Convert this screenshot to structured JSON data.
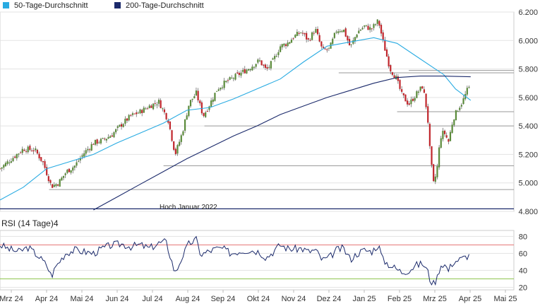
{
  "legend": {
    "ma50_label": "50-Tage-Durchschnitt",
    "ma200_label": "200-Tage-Durchschnitt"
  },
  "rsi_title": "RSI (14 Tage)4",
  "annotation": "Hoch Januar 2022",
  "colors": {
    "ma50": "#29abe2",
    "ma200": "#1b2a6b",
    "up": "#5a8a3a",
    "down": "#c0262c",
    "wick": "#555555",
    "rsi_line": "#1b2a6b",
    "rsi_upper": "#e57373",
    "rsi_lower": "#8bc34a",
    "grid": "#e3e3e3",
    "support": "#9a9a9a",
    "axis": "#bbbbbb"
  },
  "chart_data": [
    {
      "type": "candlestick",
      "title": "",
      "x_tick_labels": [
        "Mrz 24",
        "Apr 24",
        "Mai 24",
        "Jun 24",
        "Jul 24",
        "Aug 24",
        "Sep 24",
        "Okt 24",
        "Nov 24",
        "Dez 24",
        "Jan 25",
        "Feb 25",
        "Mrz 25",
        "Apr 25",
        "Mai 25"
      ],
      "y_ticks": [
        4800,
        5000,
        5200,
        5400,
        5600,
        5800,
        6000,
        6200
      ],
      "y_tick_labels": [
        "4.800",
        "5.000",
        "5.200",
        "5.400",
        "5.600",
        "5.800",
        "6.000",
        "6.200"
      ],
      "ylim": [
        4800,
        6200
      ],
      "x_range_days": [
        0,
        440
      ],
      "grid": true,
      "legend_position": "top-left",
      "horizontal_levels": [
        {
          "value": 4818,
          "label": "Hoch Januar 2022",
          "from_day": 0,
          "to_day": 440
        },
        {
          "value": 4953,
          "from_day": 42,
          "to_day": 440
        },
        {
          "value": 5120,
          "from_day": 140,
          "to_day": 440
        },
        {
          "value": 5400,
          "from_day": 175,
          "to_day": 440
        },
        {
          "value": 5500,
          "from_day": 340,
          "to_day": 440
        },
        {
          "value": 5773,
          "from_day": 290,
          "to_day": 440
        },
        {
          "value": 5790,
          "from_day": 350,
          "to_day": 440
        }
      ],
      "close_path": [
        [
          0,
          5100
        ],
        [
          10,
          5170
        ],
        [
          20,
          5240
        ],
        [
          30,
          5230
        ],
        [
          37,
          5140
        ],
        [
          44,
          4975
        ],
        [
          50,
          5000
        ],
        [
          57,
          5080
        ],
        [
          64,
          5120
        ],
        [
          72,
          5210
        ],
        [
          80,
          5280
        ],
        [
          88,
          5300
        ],
        [
          96,
          5340
        ],
        [
          104,
          5410
        ],
        [
          112,
          5470
        ],
        [
          120,
          5500
        ],
        [
          128,
          5540
        ],
        [
          136,
          5570
        ],
        [
          144,
          5440
        ],
        [
          150,
          5200
        ],
        [
          156,
          5350
        ],
        [
          162,
          5560
        ],
        [
          168,
          5630
        ],
        [
          174,
          5470
        ],
        [
          180,
          5560
        ],
        [
          186,
          5660
        ],
        [
          192,
          5700
        ],
        [
          198,
          5730
        ],
        [
          206,
          5770
        ],
        [
          214,
          5810
        ],
        [
          222,
          5860
        ],
        [
          228,
          5790
        ],
        [
          234,
          5860
        ],
        [
          240,
          5960
        ],
        [
          246,
          5980
        ],
        [
          252,
          6030
        ],
        [
          258,
          6060
        ],
        [
          264,
          6000
        ],
        [
          270,
          6080
        ],
        [
          276,
          5930
        ],
        [
          282,
          5940
        ],
        [
          288,
          6070
        ],
        [
          294,
          6080
        ],
        [
          300,
          5950
        ],
        [
          306,
          6060
        ],
        [
          312,
          6100
        ],
        [
          318,
          6080
        ],
        [
          324,
          6140
        ],
        [
          328,
          5990
        ],
        [
          334,
          5800
        ],
        [
          339,
          5740
        ],
        [
          344,
          5620
        ],
        [
          350,
          5550
        ],
        [
          356,
          5620
        ],
        [
          362,
          5680
        ],
        [
          366,
          5480
        ],
        [
          368,
          5240
        ],
        [
          371,
          4990
        ],
        [
          374,
          5080
        ],
        [
          377,
          5320
        ],
        [
          380,
          5360
        ],
        [
          384,
          5290
        ],
        [
          388,
          5450
        ],
        [
          392,
          5520
        ],
        [
          396,
          5570
        ],
        [
          400,
          5650
        ],
        [
          403,
          5680
        ]
      ],
      "series": [
        {
          "name": "50-Tage-Durchschnitt",
          "points": [
            [
              0,
              4880
            ],
            [
              20,
              4970
            ],
            [
              40,
              5100
            ],
            [
              60,
              5150
            ],
            [
              80,
              5200
            ],
            [
              100,
              5280
            ],
            [
              120,
              5350
            ],
            [
              140,
              5420
            ],
            [
              160,
              5510
            ],
            [
              180,
              5530
            ],
            [
              200,
              5590
            ],
            [
              220,
              5660
            ],
            [
              240,
              5730
            ],
            [
              260,
              5850
            ],
            [
              280,
              5960
            ],
            [
              300,
              5990
            ],
            [
              320,
              6020
            ],
            [
              340,
              5980
            ],
            [
              360,
              5870
            ],
            [
              380,
              5760
            ],
            [
              390,
              5660
            ],
            [
              403,
              5580
            ]
          ]
        },
        {
          "name": "200-Tage-Durchschnitt",
          "points": [
            [
              80,
              4810
            ],
            [
              100,
              4900
            ],
            [
              120,
              4990
            ],
            [
              140,
              5080
            ],
            [
              160,
              5170
            ],
            [
              180,
              5250
            ],
            [
              200,
              5330
            ],
            [
              220,
              5400
            ],
            [
              240,
              5480
            ],
            [
              260,
              5540
            ],
            [
              280,
              5600
            ],
            [
              300,
              5650
            ],
            [
              320,
              5700
            ],
            [
              340,
              5740
            ],
            [
              360,
              5750
            ],
            [
              380,
              5750
            ],
            [
              403,
              5745
            ]
          ]
        }
      ]
    },
    {
      "type": "line",
      "title": "RSI (14 Tage)4",
      "y_ticks": [
        20,
        40,
        60,
        80
      ],
      "y_tick_labels": [
        "20",
        "40",
        "60",
        "80"
      ],
      "ylim": [
        17,
        87
      ],
      "reference_lines": [
        70,
        30
      ],
      "rsi_path": [
        [
          0,
          70
        ],
        [
          8,
          65
        ],
        [
          16,
          62
        ],
        [
          24,
          67
        ],
        [
          32,
          58
        ],
        [
          40,
          46
        ],
        [
          44,
          33
        ],
        [
          48,
          45
        ],
        [
          56,
          60
        ],
        [
          64,
          64
        ],
        [
          72,
          62
        ],
        [
          80,
          60
        ],
        [
          88,
          66
        ],
        [
          96,
          70
        ],
        [
          104,
          71
        ],
        [
          112,
          68
        ],
        [
          120,
          70
        ],
        [
          128,
          66
        ],
        [
          136,
          72
        ],
        [
          142,
          74
        ],
        [
          146,
          56
        ],
        [
          150,
          36
        ],
        [
          156,
          56
        ],
        [
          162,
          72
        ],
        [
          168,
          76
        ],
        [
          172,
          58
        ],
        [
          178,
          62
        ],
        [
          184,
          65
        ],
        [
          190,
          66
        ],
        [
          198,
          60
        ],
        [
          206,
          63
        ],
        [
          214,
          64
        ],
        [
          222,
          62
        ],
        [
          228,
          55
        ],
        [
          234,
          62
        ],
        [
          240,
          70
        ],
        [
          246,
          66
        ],
        [
          252,
          65
        ],
        [
          258,
          66
        ],
        [
          264,
          62
        ],
        [
          270,
          64
        ],
        [
          276,
          52
        ],
        [
          282,
          55
        ],
        [
          288,
          64
        ],
        [
          294,
          66
        ],
        [
          300,
          53
        ],
        [
          306,
          60
        ],
        [
          312,
          64
        ],
        [
          318,
          62
        ],
        [
          324,
          70
        ],
        [
          328,
          52
        ],
        [
          334,
          46
        ],
        [
          339,
          42
        ],
        [
          344,
          38
        ],
        [
          350,
          40
        ],
        [
          356,
          46
        ],
        [
          362,
          48
        ],
        [
          366,
          40
        ],
        [
          368,
          30
        ],
        [
          371,
          24
        ],
        [
          374,
          30
        ],
        [
          377,
          46
        ],
        [
          380,
          48
        ],
        [
          384,
          40
        ],
        [
          388,
          50
        ],
        [
          392,
          52
        ],
        [
          396,
          54
        ],
        [
          400,
          57
        ],
        [
          403,
          58
        ]
      ]
    }
  ]
}
